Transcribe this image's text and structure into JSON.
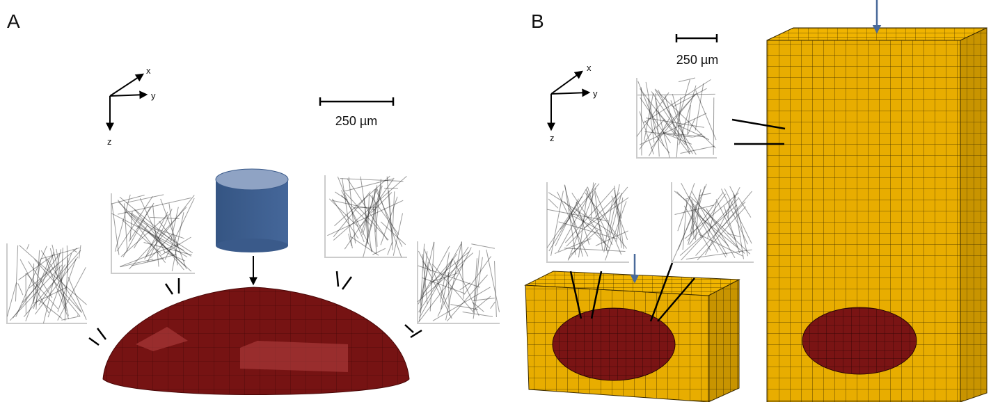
{
  "panels": [
    {
      "label": "A",
      "axes": {
        "x": "x",
        "y": "y",
        "z": "z"
      },
      "scale_bar": "250 µm"
    },
    {
      "label": "B",
      "axes": {
        "x": "x",
        "y": "y",
        "z": "z"
      },
      "scale_bar": "250 µm"
    }
  ]
}
